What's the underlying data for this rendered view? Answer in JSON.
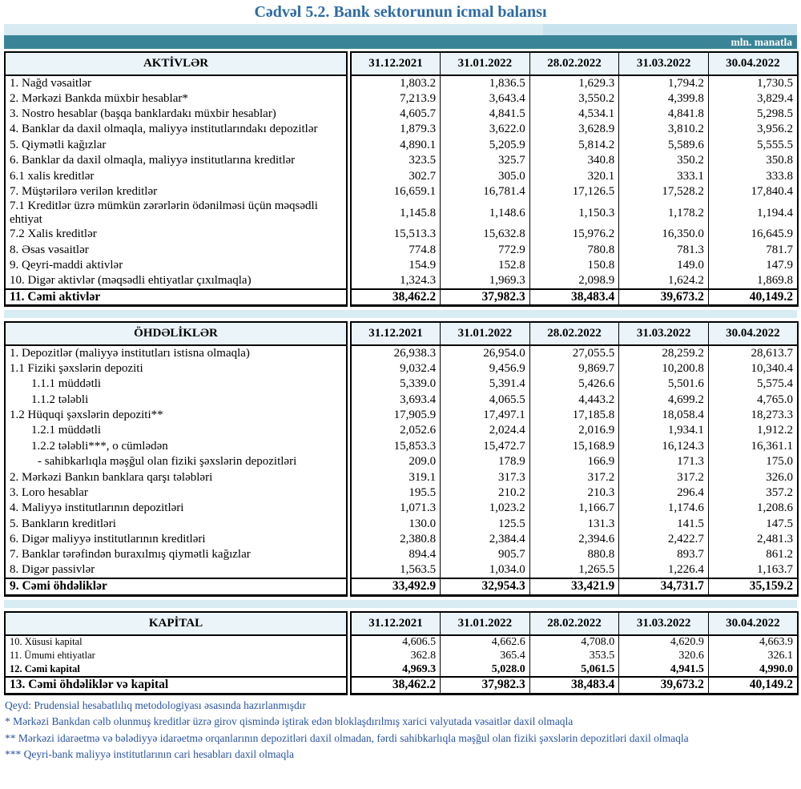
{
  "title": "Cədvəl 5.2. Bank sektorunun icmal balansı",
  "unit_label": "mln. manatla",
  "colors": {
    "title_color": "#2e6ba5",
    "band_teal": "#3a8498",
    "band_light_left": "#d9ebf2",
    "band_light_right": "#c9e3ee",
    "header_bg": "#eaf4f9",
    "separator": "#d8ecf4",
    "notes_color": "#2a55a5"
  },
  "table": {
    "columns": [
      "31.12.2021",
      "31.01.2022",
      "28.02.2022",
      "31.03.2022",
      "30.04.2022"
    ],
    "sections": [
      {
        "header": "AKTİVLƏR",
        "rows": [
          {
            "label": "1. Nağd vəsaitlər",
            "values": [
              "1,803.2",
              "1,836.5",
              "1,629.3",
              "1,794.2",
              "1,730.5"
            ]
          },
          {
            "label": "2. Mərkəzi Bankda müxbir hesablar*",
            "values": [
              "7,213.9",
              "3,643.4",
              "3,550.2",
              "4,399.8",
              "3,829.4"
            ]
          },
          {
            "label": "3. Nostro hesablar (başqa banklardakı müxbir hesablar)",
            "values": [
              "4,605.7",
              "4,841.5",
              "4,534.1",
              "4,841.8",
              "5,298.5"
            ]
          },
          {
            "label": "4. Banklar da daxil olmaqla, maliyyə institutlarındakı depozitlər",
            "values": [
              "1,879.3",
              "3,622.0",
              "3,628.9",
              "3,810.2",
              "3,956.2"
            ]
          },
          {
            "label": "5. Qiymətli kağızlar",
            "values": [
              "4,890.1",
              "5,205.9",
              "5,814.2",
              "5,589.6",
              "5,555.5"
            ]
          },
          {
            "label": "6. Banklar da daxil olmaqla, maliyyə institutlarına kreditlər",
            "values": [
              "323.5",
              "325.7",
              "340.8",
              "350.2",
              "350.8"
            ]
          },
          {
            "label": "6.1 xalis kreditlər",
            "values": [
              "302.7",
              "305.0",
              "320.1",
              "333.1",
              "333.8"
            ]
          },
          {
            "label": "7. Müştərilərə verilən kreditlər",
            "values": [
              "16,659.1",
              "16,781.4",
              "17,126.5",
              "17,528.2",
              "17,840.4"
            ]
          },
          {
            "label": "7.1 Kreditlər üzrə mümkün zərərlərin ödənilməsi üçün məqsədli ehtiyat",
            "values": [
              "1,145.8",
              "1,148.6",
              "1,150.3",
              "1,178.2",
              "1,194.4"
            ]
          },
          {
            "label": "7.2 Xalis kreditlər",
            "values": [
              "15,513.3",
              "15,632.8",
              "15,976.2",
              "16,350.0",
              "16,645.9"
            ]
          },
          {
            "label": "8.  Əsas vəsaitlər",
            "values": [
              "774.8",
              "772.9",
              "780.8",
              "781.3",
              "781.7"
            ]
          },
          {
            "label": "9. Qeyri-maddi aktivlər",
            "values": [
              "154.9",
              "152.8",
              "150.8",
              "149.0",
              "147.9"
            ]
          },
          {
            "label": "10. Digər aktivlər (məqsədli ehtiyatlar çıxılmaqla)",
            "values": [
              "1,324.3",
              "1,969.3",
              "2,098.9",
              "1,624.2",
              "1,869.8"
            ]
          }
        ],
        "total": {
          "label": "11. Cəmi aktivlər",
          "values": [
            "38,462.2",
            "37,982.3",
            "38,483.4",
            "39,673.2",
            "40,149.2"
          ]
        }
      },
      {
        "header": "ÖHDƏLİKLƏR",
        "rows": [
          {
            "label": "1. Depozitlər (maliyyə institutları istisna olmaqla)",
            "values": [
              "26,938.3",
              "26,954.0",
              "27,055.5",
              "28,259.2",
              "28,613.7"
            ]
          },
          {
            "label": "1.1 Fiziki şəxslərin depoziti",
            "values": [
              "9,032.4",
              "9,456.9",
              "9,869.7",
              "10,200.8",
              "10,340.4"
            ]
          },
          {
            "label": "1.1.1 müddətli",
            "indent": 1,
            "values": [
              "5,339.0",
              "5,391.4",
              "5,426.6",
              "5,501.6",
              "5,575.4"
            ]
          },
          {
            "label": "1.1.2 tələbli",
            "indent": 1,
            "values": [
              "3,693.4",
              "4,065.5",
              "4,443.2",
              "4,699.2",
              "4,765.0"
            ]
          },
          {
            "label": "1.2 Hüquqi şəxslərin depoziti**",
            "values": [
              "17,905.9",
              "17,497.1",
              "17,185.8",
              "18,058.4",
              "18,273.3"
            ]
          },
          {
            "label": "1.2.1 müddətli",
            "indent": 1,
            "values": [
              "2,052.6",
              "2,024.4",
              "2,016.9",
              "1,934.1",
              "1,912.2"
            ]
          },
          {
            "label": "1.2.2 tələbli***, o cümlədən",
            "indent": 1,
            "values": [
              "15,853.3",
              "15,472.7",
              "15,168.9",
              "16,124.3",
              "16,361.1"
            ]
          },
          {
            "label": "- sahibkarlıqla məşğul olan fiziki şəxslərin depozitləri",
            "indent": 2,
            "values": [
              "209.0",
              "178.9",
              "166.9",
              "171.3",
              "175.0"
            ]
          },
          {
            "label": "2. Mərkəzi Bankın banklara qarşı tələbləri",
            "values": [
              "319.1",
              "317.3",
              "317.2",
              "317.2",
              "326.0"
            ]
          },
          {
            "label": "3. Loro hesablar",
            "values": [
              "195.5",
              "210.2",
              "210.3",
              "296.4",
              "357.2"
            ]
          },
          {
            "label": "4. Maliyyə institutlarının  depozitləri",
            "values": [
              "1,071.3",
              "1,023.2",
              "1,166.7",
              "1,174.6",
              "1,208.6"
            ]
          },
          {
            "label": "5. Bankların kreditləri",
            "values": [
              "130.0",
              "125.5",
              "131.3",
              "141.5",
              "147.5"
            ]
          },
          {
            "label": "6. Digər maliyyə institutlarının kreditləri",
            "values": [
              "2,380.8",
              "2,384.4",
              "2,394.6",
              "2,422.7",
              "2,481.3"
            ]
          },
          {
            "label": "7. Banklar tərəfindən buraxılmış qiymətli kağızlar",
            "values": [
              "894.4",
              "905.7",
              "880.8",
              "893.7",
              "861.2"
            ]
          },
          {
            "label": "8. Digər passivlər",
            "values": [
              "1,563.5",
              "1,034.0",
              "1,265.5",
              "1,226.4",
              "1,163.7"
            ]
          }
        ],
        "total": {
          "label": "9. Cəmi öhdəliklər",
          "values": [
            "33,492.9",
            "32,954.3",
            "33,421.9",
            "34,731.7",
            "35,159.2"
          ]
        }
      },
      {
        "header": "KAPİTAL",
        "rows": [
          {
            "label": "10. Xüsusi kapital",
            "small": true,
            "values": [
              "4,606.5",
              "4,662.6",
              "4,708.0",
              "4,620.9",
              "4,663.9"
            ]
          },
          {
            "label": "11. Ümumi ehtiyatlar",
            "small": true,
            "values": [
              "362.8",
              "365.4",
              "353.5",
              "320.6",
              "326.1"
            ]
          },
          {
            "label": "12. Cəmi kapital",
            "small": true,
            "bold": true,
            "values": [
              "4,969.3",
              "5,028.0",
              "5,061.5",
              "4,941.5",
              "4,990.0"
            ]
          }
        ],
        "total": {
          "label": "13. Cəmi öhdəliklər və kapital",
          "values": [
            "38,462.2",
            "37,982.3",
            "38,483.4",
            "39,673.2",
            "40,149.2"
          ]
        }
      }
    ]
  },
  "notes": [
    "Qeyd: Prudensial hesabatlılıq metodologiyası əsasında hazırlanmışdır",
    "* Mərkəzi Bankdan cəlb olunmuş kreditlər üzrə girov qismində iştirak edən bloklaşdırılmış xarici valyutada vəsaitlər daxil olmaqla",
    "** Mərkəzi idarəetmə və bələdiyyə idarəetmə orqanlarının depozitləri daxil olmadan, fərdi sahibkarlıqla məşğul olan fiziki şəxslərin depozitləri daxil olmaqla",
    "*** Qeyri-bank maliyyə institutlarının cari hesabları daxil olmaqla"
  ]
}
